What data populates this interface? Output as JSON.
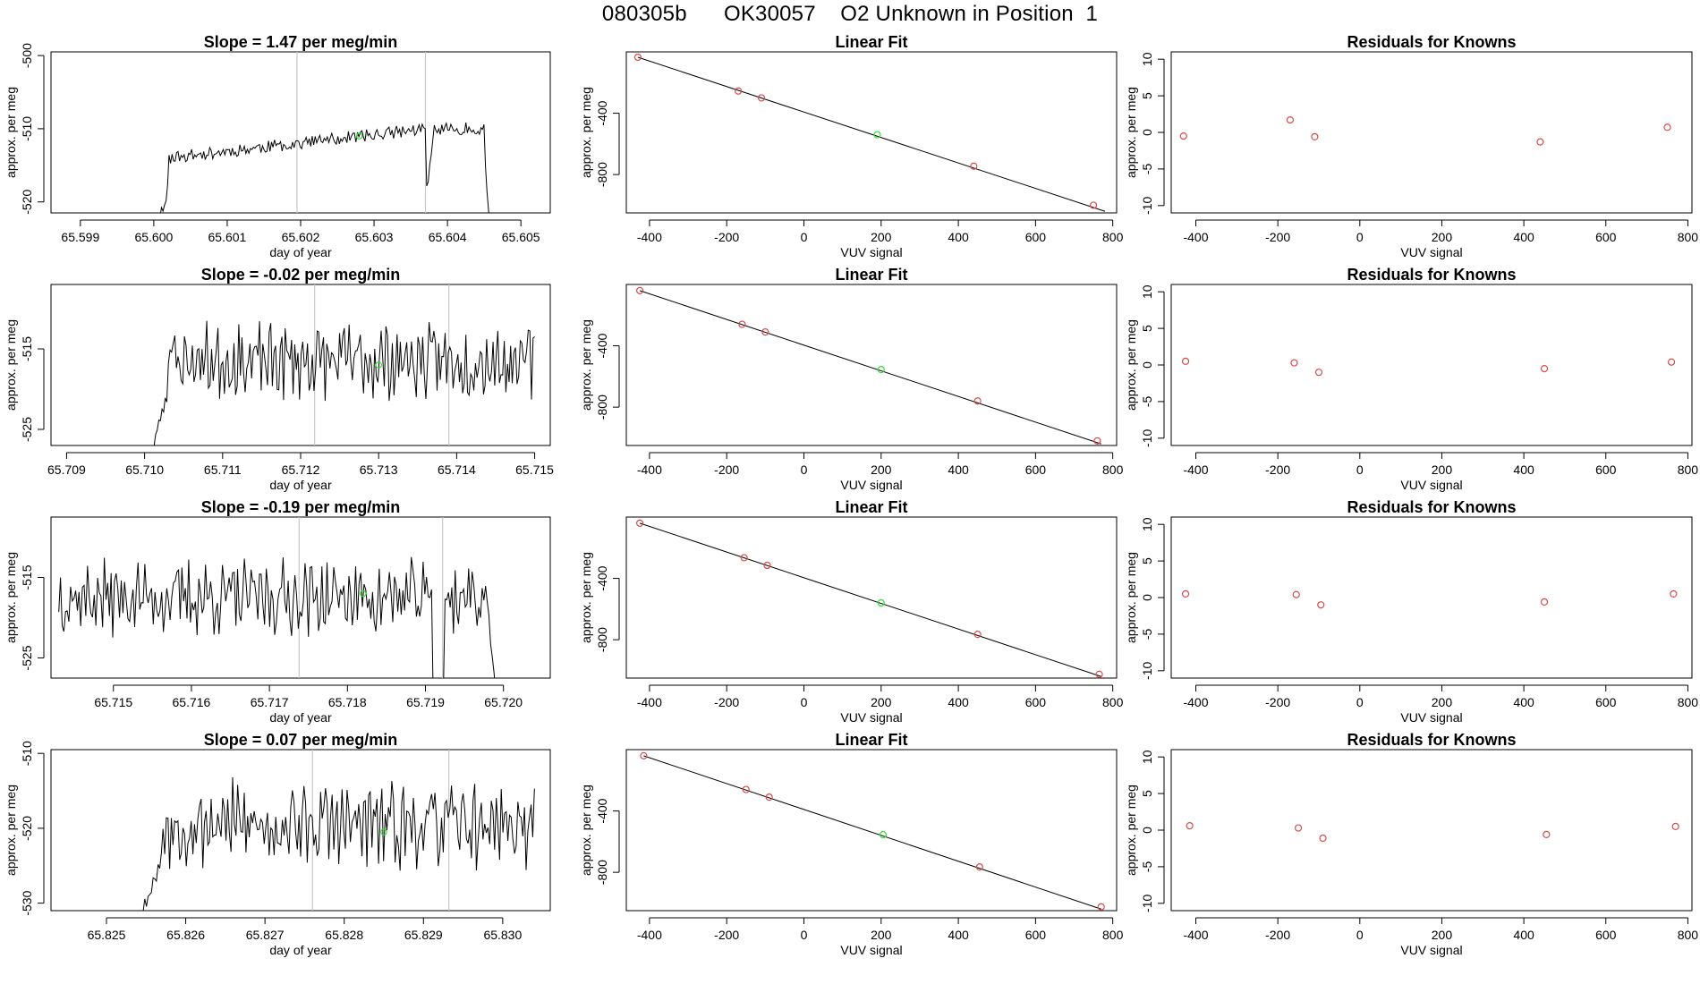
{
  "page": {
    "title": "080305b      OK30057    O2 Unknown in Position  1",
    "colors": {
      "line": "#000000",
      "marker_known": "#d94a4a",
      "marker_unknown": "#33dd33",
      "divider": "#c8c8c8",
      "frame": "#000000"
    }
  },
  "chart_data": [
    {
      "row": 0,
      "type": "line",
      "title": "Slope =  1.47  per meg/min",
      "xlabel": "day of year",
      "ylabel": "approx. per meg",
      "xlim": [
        65.5986,
        65.6054
      ],
      "ylim": [
        -521.5,
        -499.5
      ],
      "xticks": [
        65.599,
        65.6,
        65.601,
        65.602,
        65.603,
        65.604,
        65.605
      ],
      "xtick_labels": [
        "65.599",
        "65.600",
        "65.601",
        "65.602",
        "65.603",
        "65.604",
        "65.605"
      ],
      "yticks": [
        -500,
        -510,
        -520
      ],
      "ytick_labels": [
        "-500",
        "-510",
        "-520"
      ],
      "vlines": [
        65.60195,
        65.6037
      ],
      "unknown_point": {
        "x": 65.6028,
        "y": -511
      },
      "signal": {
        "start": 65.5999,
        "end": 65.6046,
        "points": 230,
        "mean": -512,
        "amp": 2.8,
        "seed": 11,
        "segments": [
          {
            "from": 65.5999,
            "to": 65.6002,
            "start": -528,
            "end": -518
          },
          {
            "from": 65.6002,
            "to": 65.6037,
            "start": -514,
            "end": -510
          },
          {
            "from": 65.6037,
            "to": 65.6038,
            "start": -520,
            "end": -512
          },
          {
            "from": 65.6038,
            "to": 65.6045,
            "start": -510,
            "end": -510
          },
          {
            "from": 65.6045,
            "to": 65.6046,
            "start": -512,
            "end": -528
          }
        ]
      }
    },
    {
      "row": 1,
      "type": "line",
      "title": "Slope =  -0.02  per meg/min",
      "xlabel": "day of year",
      "ylabel": "approx. per meg",
      "xlim": [
        65.7088,
        65.7152
      ],
      "ylim": [
        -527,
        -507
      ],
      "xticks": [
        65.709,
        65.71,
        65.711,
        65.712,
        65.713,
        65.714,
        65.715
      ],
      "xtick_labels": [
        "65.709",
        "65.710",
        "65.711",
        "65.712",
        "65.713",
        "65.714",
        "65.715"
      ],
      "yticks": [
        -515,
        -525
      ],
      "ytick_labels": [
        "-515",
        "-525"
      ],
      "vlines": [
        65.71218,
        65.7139
      ],
      "unknown_point": {
        "x": 65.713,
        "y": -517
      },
      "signal": {
        "start": 65.7101,
        "end": 65.715,
        "points": 240,
        "mean": -516.5,
        "amp": 3.6,
        "seed": 23,
        "segments": [
          {
            "from": 65.7101,
            "to": 65.7103,
            "start": -528,
            "end": -520
          }
        ]
      }
    },
    {
      "row": 2,
      "type": "line",
      "title": "Slope =  -0.19  per meg/min",
      "xlabel": "day of year",
      "ylabel": "approx. per meg",
      "xlim": [
        65.7142,
        65.7206
      ],
      "ylim": [
        -527.5,
        -507.5
      ],
      "xticks": [
        65.715,
        65.716,
        65.717,
        65.718,
        65.719,
        65.72
      ],
      "xtick_labels": [
        "65.715",
        "65.716",
        "65.717",
        "65.718",
        "65.719",
        "65.720"
      ],
      "yticks": [
        -515,
        -525
      ],
      "ytick_labels": [
        "-515",
        "-525"
      ],
      "vlines": [
        65.71738,
        65.71922
      ],
      "unknown_point": {
        "x": 65.7182,
        "y": -517
      },
      "signal": {
        "start": 65.7143,
        "end": 65.7199,
        "points": 260,
        "mean": -517.5,
        "amp": 3.6,
        "seed": 37,
        "segments": [
          {
            "from": 65.7191,
            "to": 65.71925,
            "start": -530,
            "end": -530
          },
          {
            "from": 65.7198,
            "to": 65.7199,
            "start": -518,
            "end": -530
          }
        ]
      }
    },
    {
      "row": 3,
      "type": "line",
      "title": "Slope =  0.07  per meg/min",
      "xlabel": "day of year",
      "ylabel": "approx. per meg",
      "xlim": [
        65.8243,
        65.8306
      ],
      "ylim": [
        -531,
        -509.5
      ],
      "xticks": [
        65.826,
        65.827,
        65.828,
        65.829,
        65.83
      ],
      "xtick_labels": [
        "65.826",
        "65.827",
        "65.828",
        "65.829",
        "65.830"
      ],
      "extra_xticks": [
        65.825
      ],
      "extra_xtick_labels": [
        "65.825"
      ],
      "yticks": [
        -510,
        -520,
        -530
      ],
      "ytick_labels": [
        "-510",
        "-520",
        "-530"
      ],
      "vlines": [
        65.8276,
        65.82932
      ],
      "unknown_point": {
        "x": 65.8285,
        "y": -520.5
      },
      "signal": {
        "start": 65.8254,
        "end": 65.8304,
        "points": 240,
        "mean": -519.5,
        "amp": 4.4,
        "seed": 53,
        "segments": [
          {
            "from": 65.8254,
            "to": 65.8257,
            "start": -532,
            "end": -524
          }
        ]
      }
    },
    {
      "row": 0,
      "type": "scatter",
      "title": "Linear Fit",
      "xlabel": "VUV signal",
      "ylabel": "approx. per meg",
      "xlim": [
        -460,
        810
      ],
      "ylim": [
        -1050,
        0
      ],
      "xticks": [
        -400,
        -200,
        0,
        200,
        400,
        600,
        800
      ],
      "xtick_labels": [
        "-400",
        "-200",
        "0",
        "200",
        "400",
        "600",
        "800"
      ],
      "yticks": [
        -400,
        -800
      ],
      "ytick_labels": [
        "-400",
        "-800"
      ],
      "fit_line": {
        "x": [
          -430,
          780
        ],
        "y": [
          -35,
          -1040
        ]
      },
      "points": [
        {
          "x": -430,
          "y": -35
        },
        {
          "x": -170,
          "y": -255
        },
        {
          "x": -110,
          "y": -300
        },
        {
          "x": 440,
          "y": -745
        },
        {
          "x": 750,
          "y": -1000
        }
      ],
      "unknown": {
        "x": 190,
        "y": -540
      }
    },
    {
      "row": 1,
      "type": "scatter",
      "title": "Linear Fit",
      "xlabel": "VUV signal",
      "ylabel": "approx. per meg",
      "xlim": [
        -460,
        810
      ],
      "ylim": [
        -1050,
        0
      ],
      "xticks": [
        -400,
        -200,
        0,
        200,
        400,
        600,
        800
      ],
      "xtick_labels": [
        "-400",
        "-200",
        "0",
        "200",
        "400",
        "600",
        "800"
      ],
      "yticks": [
        -400,
        -800
      ],
      "ytick_labels": [
        "-400",
        "-800"
      ],
      "fit_line": {
        "x": [
          -425,
          770
        ],
        "y": [
          -40,
          -1040
        ]
      },
      "points": [
        {
          "x": -425,
          "y": -40
        },
        {
          "x": -160,
          "y": -260
        },
        {
          "x": -100,
          "y": -310
        },
        {
          "x": 450,
          "y": -760
        },
        {
          "x": 760,
          "y": -1020
        }
      ],
      "unknown": {
        "x": 200,
        "y": -555
      }
    },
    {
      "row": 2,
      "type": "scatter",
      "title": "Linear Fit",
      "xlabel": "VUV signal",
      "ylabel": "approx. per meg",
      "xlim": [
        -460,
        810
      ],
      "ylim": [
        -1050,
        0
      ],
      "xticks": [
        -400,
        -200,
        0,
        200,
        400,
        600,
        800
      ],
      "xtick_labels": [
        "-400",
        "-200",
        "0",
        "200",
        "400",
        "600",
        "800"
      ],
      "yticks": [
        -400,
        -800
      ],
      "ytick_labels": [
        "-400",
        "-800"
      ],
      "fit_line": {
        "x": [
          -425,
          770
        ],
        "y": [
          -40,
          -1040
        ]
      },
      "points": [
        {
          "x": -425,
          "y": -40
        },
        {
          "x": -155,
          "y": -265
        },
        {
          "x": -95,
          "y": -315
        },
        {
          "x": 450,
          "y": -765
        },
        {
          "x": 765,
          "y": -1025
        }
      ],
      "unknown": {
        "x": 200,
        "y": -560
      }
    },
    {
      "row": 3,
      "type": "scatter",
      "title": "Linear Fit",
      "xlabel": "VUV signal",
      "ylabel": "approx. per meg",
      "xlim": [
        -460,
        810
      ],
      "ylim": [
        -1050,
        0
      ],
      "xticks": [
        -400,
        -200,
        0,
        200,
        400,
        600,
        800
      ],
      "xtick_labels": [
        "-400",
        "-200",
        "0",
        "200",
        "400",
        "600",
        "800"
      ],
      "yticks": [
        -400,
        -800
      ],
      "ytick_labels": [
        "-400",
        "-800"
      ],
      "fit_line": {
        "x": [
          -415,
          770
        ],
        "y": [
          -40,
          -1040
        ]
      },
      "points": [
        {
          "x": -415,
          "y": -40
        },
        {
          "x": -150,
          "y": -260
        },
        {
          "x": -90,
          "y": -310
        },
        {
          "x": 455,
          "y": -765
        },
        {
          "x": 770,
          "y": -1025
        }
      ],
      "unknown": {
        "x": 205,
        "y": -555
      }
    },
    {
      "row": 0,
      "type": "scatter",
      "title": "Residuals for Knowns",
      "xlabel": "VUV signal",
      "ylabel": "approx. per meg",
      "xlim": [
        -460,
        810
      ],
      "ylim": [
        -11,
        11
      ],
      "xticks": [
        -400,
        -200,
        0,
        200,
        400,
        600,
        800
      ],
      "xtick_labels": [
        "-400",
        "-200",
        "0",
        "200",
        "400",
        "600",
        "800"
      ],
      "yticks": [
        10,
        5,
        0,
        -5,
        -10
      ],
      "ytick_labels": [
        "10",
        "5",
        "0",
        "-5",
        "-10"
      ],
      "points": [
        {
          "x": -430,
          "y": -0.5
        },
        {
          "x": -170,
          "y": 1.7
        },
        {
          "x": -110,
          "y": -0.6
        },
        {
          "x": 440,
          "y": -1.3
        },
        {
          "x": 750,
          "y": 0.7
        }
      ]
    },
    {
      "row": 1,
      "type": "scatter",
      "title": "Residuals for Knowns",
      "xlabel": "VUV signal",
      "ylabel": "approx. per meg",
      "xlim": [
        -460,
        810
      ],
      "ylim": [
        -11,
        11
      ],
      "xticks": [
        -400,
        -200,
        0,
        200,
        400,
        600,
        800
      ],
      "xtick_labels": [
        "-400",
        "-200",
        "0",
        "200",
        "400",
        "600",
        "800"
      ],
      "yticks": [
        10,
        5,
        0,
        -5,
        -10
      ],
      "ytick_labels": [
        "10",
        "5",
        "0",
        "-5",
        "-10"
      ],
      "points": [
        {
          "x": -425,
          "y": 0.5
        },
        {
          "x": -160,
          "y": 0.3
        },
        {
          "x": -100,
          "y": -1.0
        },
        {
          "x": 450,
          "y": -0.5
        },
        {
          "x": 760,
          "y": 0.4
        }
      ]
    },
    {
      "row": 2,
      "type": "scatter",
      "title": "Residuals for Knowns",
      "xlabel": "VUV signal",
      "ylabel": "approx. per meg",
      "xlim": [
        -460,
        810
      ],
      "ylim": [
        -11,
        11
      ],
      "xticks": [
        -400,
        -200,
        0,
        200,
        400,
        600,
        800
      ],
      "xtick_labels": [
        "-400",
        "-200",
        "0",
        "200",
        "400",
        "600",
        "800"
      ],
      "yticks": [
        10,
        5,
        0,
        -5,
        -10
      ],
      "ytick_labels": [
        "10",
        "5",
        "0",
        "-5",
        "-10"
      ],
      "points": [
        {
          "x": -425,
          "y": 0.5
        },
        {
          "x": -155,
          "y": 0.4
        },
        {
          "x": -95,
          "y": -1.0
        },
        {
          "x": 450,
          "y": -0.6
        },
        {
          "x": 765,
          "y": 0.5
        }
      ]
    },
    {
      "row": 3,
      "type": "scatter",
      "title": "Residuals for Knowns",
      "xlabel": "VUV signal",
      "ylabel": "approx. per meg",
      "xlim": [
        -460,
        810
      ],
      "ylim": [
        -11,
        11
      ],
      "xticks": [
        -400,
        -200,
        0,
        200,
        400,
        600,
        800
      ],
      "xtick_labels": [
        "-400",
        "-200",
        "0",
        "200",
        "400",
        "600",
        "800"
      ],
      "yticks": [
        10,
        5,
        0,
        -5,
        -10
      ],
      "ytick_labels": [
        "10",
        "5",
        "0",
        "-5",
        "-10"
      ],
      "points": [
        {
          "x": -415,
          "y": 0.6
        },
        {
          "x": -150,
          "y": 0.3
        },
        {
          "x": -90,
          "y": -1.1
        },
        {
          "x": 455,
          "y": -0.6
        },
        {
          "x": 770,
          "y": 0.5
        }
      ]
    }
  ]
}
